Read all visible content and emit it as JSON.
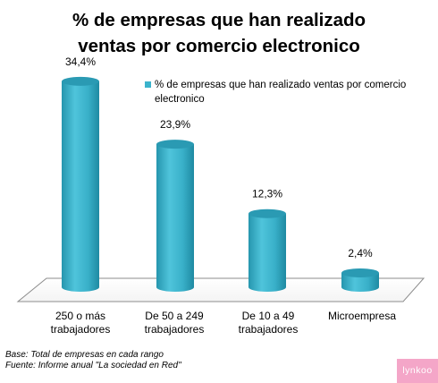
{
  "title_line1": "% de empresas que han realizado",
  "title_line2": "ventas por comercio electronico",
  "chart_data": {
    "type": "bar",
    "categories": [
      "250 o más trabajadores",
      "De 50 a 249 trabajadores",
      "De 10 a 49 trabajadores",
      "Microempresa"
    ],
    "category_lines": [
      [
        "250 o más",
        "trabajadores"
      ],
      [
        "De 50 a 249",
        "trabajadores"
      ],
      [
        "De 10 a 49",
        "trabajadores"
      ],
      [
        "Microempresa",
        ""
      ]
    ],
    "series": [
      {
        "name": "% de empresas que han realizado ventas por comercio electronico",
        "values": [
          34.4,
          23.9,
          12.3,
          2.4
        ]
      }
    ],
    "value_labels": [
      "34,4%",
      "23,9%",
      "12,3%",
      "2,4%"
    ],
    "ylim": [
      0,
      40
    ],
    "grid": false,
    "legend_position": "top-right",
    "colors": {
      "bar": "#3bb3cc",
      "bar_dark": "#1f8fa8",
      "bar_top": "#2a9ab3"
    }
  },
  "legend_text_line1": "% de empresas que han realizado ventas por comercio",
  "legend_text_line2": "electronico",
  "note_base": "Base: Total de empresas en cada rango",
  "note_source": "Fuente:  Informe anual \"La sociedad en Red\"",
  "logo_text": "lynkoo"
}
